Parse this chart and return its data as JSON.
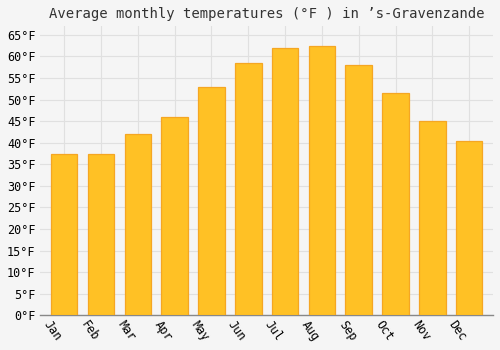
{
  "title": "Average monthly temperatures (°F ) in ’s-Gravenzande",
  "months": [
    "Jan",
    "Feb",
    "Mar",
    "Apr",
    "May",
    "Jun",
    "Jul",
    "Aug",
    "Sep",
    "Oct",
    "Nov",
    "Dec"
  ],
  "values": [
    37.5,
    37.5,
    42,
    46,
    53,
    58.5,
    62,
    62.5,
    58,
    51.5,
    45,
    40.5
  ],
  "bar_color_main": "#FFC125",
  "bar_color_edge": "#F5A623",
  "background_color": "#F5F5F5",
  "grid_color": "#E0E0E0",
  "ylim": [
    0,
    67
  ],
  "ytick_step": 5,
  "title_fontsize": 10,
  "tick_fontsize": 8.5,
  "font_family": "monospace",
  "xlabel_rotation": -55
}
